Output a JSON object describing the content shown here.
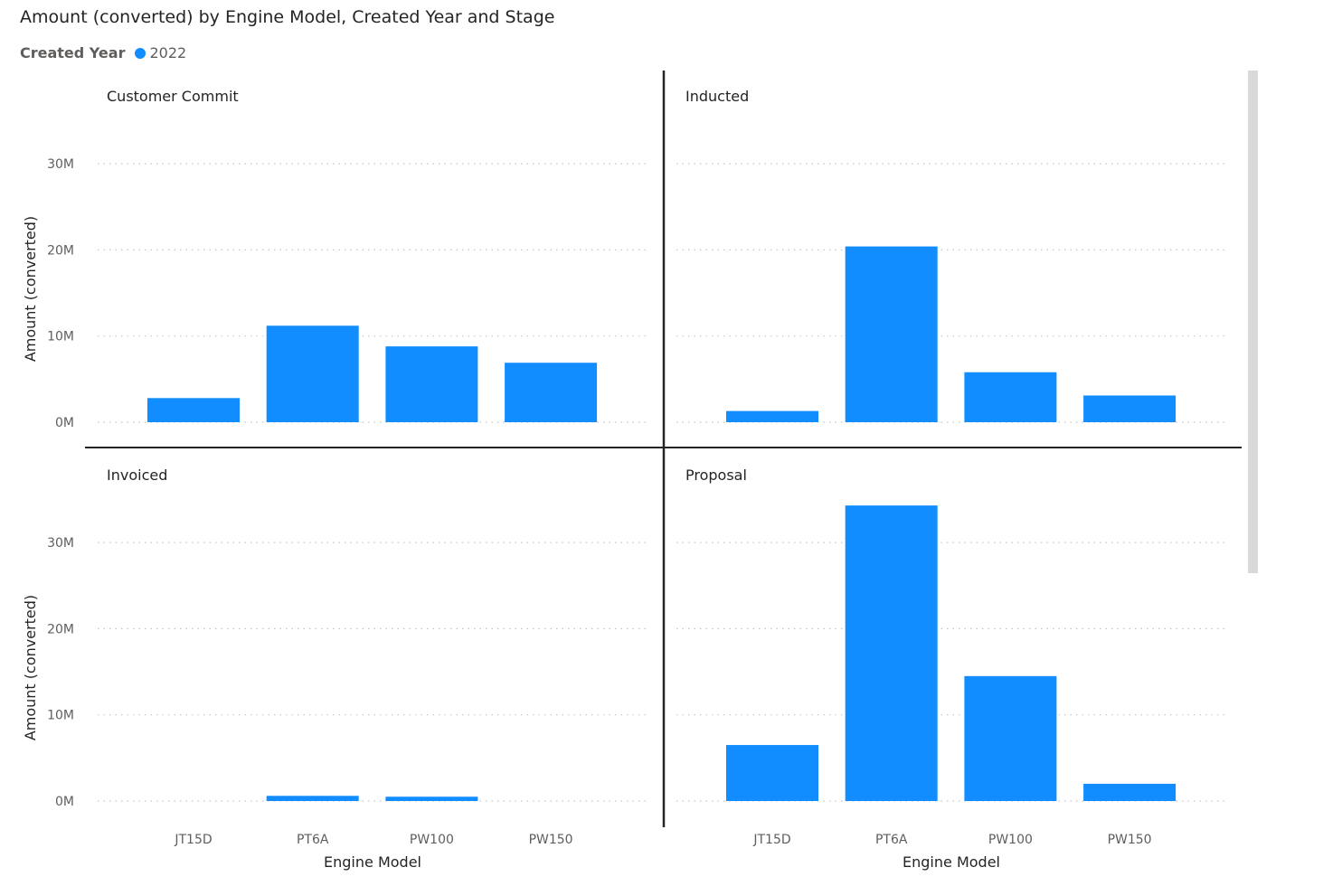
{
  "title": "Amount (converted) by Engine Model, Created Year and Stage",
  "legend": {
    "title": "Created Year",
    "items": [
      {
        "label": "2022",
        "color": "#118DFF"
      }
    ]
  },
  "colors": {
    "bar": "#118DFF",
    "grid": "#c8c6c4",
    "divider": "#252423",
    "scrollbar": "#d9d9d9"
  },
  "chart_data": {
    "type": "bar",
    "categories": [
      "JT15D",
      "PT6A",
      "PW100",
      "PW150"
    ],
    "xlabel": "Engine Model",
    "ylabel": "Amount (converted)",
    "yticks": [
      0,
      10000000,
      20000000,
      30000000
    ],
    "ytick_labels": [
      "0M",
      "10M",
      "20M",
      "30M"
    ],
    "ylim": [
      0,
      33000000
    ],
    "grid": true,
    "legend_position": "top-left",
    "panels": [
      {
        "name": "Customer Commit",
        "values": [
          2800000,
          11200000,
          8800000,
          6900000
        ]
      },
      {
        "name": "Inducted",
        "values": [
          1300000,
          20400000,
          5800000,
          3100000
        ]
      },
      {
        "name": "Invoiced",
        "values": [
          0,
          600000,
          500000,
          0
        ]
      },
      {
        "name": "Proposal",
        "values": [
          6500000,
          34300000,
          14500000,
          2000000
        ]
      }
    ]
  }
}
